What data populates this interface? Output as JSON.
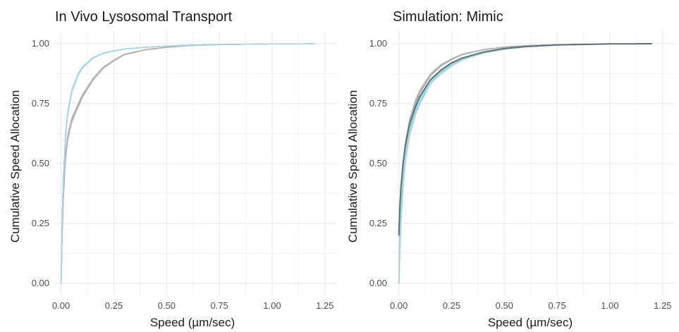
{
  "chart_data": [
    {
      "type": "line",
      "title": "In Vivo Lysosomal Transport",
      "xlabel": "Speed (µm/sec)",
      "ylabel": "Cumulative Speed Allocation",
      "xlim": [
        0,
        1.25
      ],
      "ylim": [
        0,
        1
      ],
      "x_ticks": [
        "0.00",
        "0.25",
        "0.50",
        "0.75",
        "1.00",
        "1.25"
      ],
      "y_ticks": [
        "0.00",
        "0.25",
        "0.50",
        "0.75",
        "1.00"
      ],
      "grid": true,
      "legend": "none",
      "colors": {
        "gray": "#b3b3b3",
        "blue": "#a6d6e3"
      },
      "series": [
        {
          "color": "gray",
          "n_curves": 12,
          "spread": 0.015,
          "x": [
            0,
            0.005,
            0.01,
            0.02,
            0.03,
            0.05,
            0.08,
            0.1,
            0.15,
            0.2,
            0.25,
            0.3,
            0.4,
            0.5,
            0.6,
            0.75,
            1.0,
            1.2
          ],
          "y": [
            0,
            0.2,
            0.35,
            0.52,
            0.6,
            0.68,
            0.74,
            0.78,
            0.85,
            0.9,
            0.93,
            0.955,
            0.975,
            0.985,
            0.992,
            0.996,
            0.999,
            1.0
          ]
        },
        {
          "color": "blue",
          "n_curves": 12,
          "spread": 0.015,
          "x": [
            0,
            0.005,
            0.01,
            0.02,
            0.03,
            0.05,
            0.08,
            0.1,
            0.15,
            0.2,
            0.25,
            0.3,
            0.4,
            0.5,
            0.6,
            0.75,
            1.0,
            1.2
          ],
          "y": [
            0,
            0.25,
            0.42,
            0.6,
            0.7,
            0.8,
            0.87,
            0.9,
            0.94,
            0.96,
            0.97,
            0.978,
            0.985,
            0.99,
            0.994,
            0.997,
            0.999,
            1.0
          ]
        }
      ]
    },
    {
      "type": "line",
      "title": "Simulation: Mimic",
      "xlabel": "Speed (µm/sec)",
      "ylabel": "Cumulative Speed Allocation",
      "xlim": [
        0,
        1.25
      ],
      "ylim": [
        0,
        1
      ],
      "x_ticks": [
        "0.00",
        "0.25",
        "0.50",
        "0.75",
        "1.00",
        "1.25"
      ],
      "y_ticks": [
        "0.00",
        "0.25",
        "0.50",
        "0.75",
        "1.00"
      ],
      "grid": true,
      "legend": "none",
      "colors": {
        "gray": "#b3b3b3",
        "blue": "#a6d6e3",
        "fit": "#5f6f76"
      },
      "series": [
        {
          "color": "gray",
          "n_curves": 10,
          "spread": 0.02,
          "x": [
            0,
            0.005,
            0.01,
            0.02,
            0.03,
            0.05,
            0.08,
            0.1,
            0.15,
            0.2,
            0.25,
            0.3,
            0.4,
            0.5,
            0.6,
            0.75,
            1.0,
            1.2
          ],
          "y": [
            0,
            0.22,
            0.35,
            0.48,
            0.57,
            0.67,
            0.76,
            0.8,
            0.87,
            0.91,
            0.935,
            0.955,
            0.975,
            0.986,
            0.992,
            0.996,
            0.999,
            1.0
          ]
        },
        {
          "color": "blue",
          "n_curves": 10,
          "spread": 0.03,
          "x": [
            0,
            0.005,
            0.01,
            0.02,
            0.03,
            0.05,
            0.08,
            0.1,
            0.15,
            0.2,
            0.25,
            0.3,
            0.4,
            0.5,
            0.6,
            0.75,
            1.0,
            1.2
          ],
          "y": [
            0,
            0.15,
            0.28,
            0.42,
            0.52,
            0.63,
            0.72,
            0.76,
            0.84,
            0.88,
            0.91,
            0.935,
            0.962,
            0.977,
            0.987,
            0.994,
            0.999,
            1.0
          ]
        },
        {
          "color": "fit",
          "n_curves": 1,
          "spread": 0,
          "x": [
            0,
            0.005,
            0.01,
            0.02,
            0.03,
            0.05,
            0.08,
            0.1,
            0.15,
            0.2,
            0.25,
            0.3,
            0.4,
            0.5,
            0.6,
            0.75,
            1.0,
            1.2
          ],
          "y": [
            0.2,
            0.32,
            0.4,
            0.5,
            0.57,
            0.66,
            0.74,
            0.78,
            0.85,
            0.89,
            0.92,
            0.94,
            0.965,
            0.98,
            0.988,
            0.995,
            0.999,
            1.0
          ]
        }
      ]
    }
  ]
}
